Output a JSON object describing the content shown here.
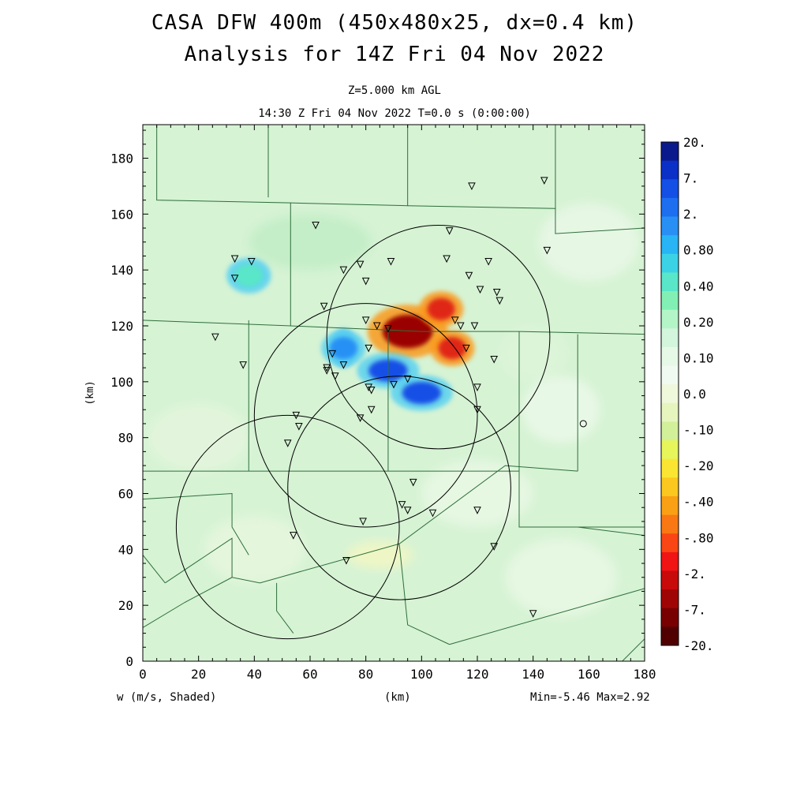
{
  "header": {
    "title_line1": "CASA DFW 400m (450x480x25, dx=0.4 km)",
    "title_line2": "Analysis for 14Z Fri 04 Nov 2022",
    "level": "Z=5.000 km AGL",
    "time": "14:30 Z Fri 04 Nov 2022    T=0.0 s (0:00:00)"
  },
  "footer": {
    "variable": "w (m/s, Shaded)",
    "xunit": "(km)",
    "minmax": "Min=-5.46 Max=2.92"
  },
  "chart_data": {
    "type": "heatmap",
    "title": "CASA DFW 400m (450x480x25, dx=0.4 km)",
    "xlabel": "(km)",
    "ylabel": "(km)",
    "xlim": [
      0,
      180
    ],
    "ylim": [
      0,
      192
    ],
    "x_ticks": [
      0,
      20,
      40,
      60,
      80,
      100,
      120,
      140,
      160,
      180
    ],
    "y_ticks": [
      0,
      20,
      40,
      60,
      80,
      100,
      120,
      140,
      160,
      180
    ],
    "colorbar": {
      "labels": [
        "20.",
        "7.",
        "2.",
        "0.80",
        "0.40",
        "0.20",
        "0.10",
        "0.0",
        "-.10",
        "-.20",
        "-.40",
        "-.80",
        "-2.",
        "-7.",
        "-20."
      ],
      "colors": [
        "#0a1a8c",
        "#0a30c8",
        "#1450e6",
        "#1e6ef0",
        "#2890f5",
        "#28b4f5",
        "#3cd2e6",
        "#5ae6c8",
        "#82f0b4",
        "#b4f5c8",
        "#d2f5dc",
        "#e6f8e6",
        "#f0faf0",
        "#f0f8dc",
        "#e6f5be",
        "#d2f09a",
        "#e6f55a",
        "#fae632",
        "#fac81e",
        "#faa014",
        "#fa7814",
        "#fa4614",
        "#f01414",
        "#c80a0a",
        "#a00505",
        "#780000",
        "#500000"
      ]
    },
    "min": -5.46,
    "max": 2.92,
    "features": [
      {
        "kind": "downdraft_core",
        "x": 95,
        "y": 118,
        "value": -5.46
      },
      {
        "kind": "downdraft_lobe",
        "x": 107,
        "y": 126,
        "value": -1.5
      },
      {
        "kind": "downdraft_lobe",
        "x": 111,
        "y": 112,
        "value": -1.2
      },
      {
        "kind": "updraft_band",
        "x": 88,
        "y": 104,
        "value": 2.0
      },
      {
        "kind": "updraft_band",
        "x": 100,
        "y": 96,
        "value": 1.5
      },
      {
        "kind": "updraft",
        "x": 72,
        "y": 112,
        "value": 0.6
      },
      {
        "kind": "updraft",
        "x": 38,
        "y": 138,
        "value": 0.3
      }
    ],
    "radar_circles": [
      {
        "cx": 106,
        "cy": 116,
        "r": 40
      },
      {
        "cx": 80,
        "cy": 88,
        "r": 40
      },
      {
        "cx": 92,
        "cy": 62,
        "r": 40
      },
      {
        "cx": 52,
        "cy": 48,
        "r": 40
      }
    ],
    "station_marker": {
      "x": 158,
      "y": 85
    },
    "stations": [
      [
        118,
        170
      ],
      [
        144,
        172
      ],
      [
        62,
        156
      ],
      [
        110,
        154
      ],
      [
        33,
        144
      ],
      [
        33,
        137
      ],
      [
        39,
        143
      ],
      [
        78,
        142
      ],
      [
        89,
        143
      ],
      [
        109,
        144
      ],
      [
        124,
        143
      ],
      [
        145,
        147
      ],
      [
        72,
        140
      ],
      [
        80,
        136
      ],
      [
        117,
        138
      ],
      [
        121,
        133
      ],
      [
        127,
        132
      ],
      [
        128,
        129
      ],
      [
        65,
        127
      ],
      [
        80,
        122
      ],
      [
        84,
        120
      ],
      [
        88,
        119
      ],
      [
        112,
        122
      ],
      [
        114,
        120
      ],
      [
        119,
        120
      ],
      [
        26,
        116
      ],
      [
        81,
        112
      ],
      [
        116,
        112
      ],
      [
        126,
        108
      ],
      [
        36,
        106
      ],
      [
        68,
        110
      ],
      [
        66,
        105
      ],
      [
        72,
        106
      ],
      [
        66,
        104
      ],
      [
        69,
        102
      ],
      [
        95,
        101
      ],
      [
        81,
        98
      ],
      [
        82,
        97
      ],
      [
        90,
        99
      ],
      [
        120,
        98
      ],
      [
        82,
        90
      ],
      [
        78,
        87
      ],
      [
        120,
        90
      ],
      [
        55,
        88
      ],
      [
        56,
        84
      ],
      [
        52,
        78
      ],
      [
        97,
        64
      ],
      [
        93,
        56
      ],
      [
        95,
        54
      ],
      [
        104,
        53
      ],
      [
        120,
        54
      ],
      [
        79,
        50
      ],
      [
        54,
        45
      ],
      [
        126,
        41
      ],
      [
        73,
        36
      ],
      [
        140,
        17
      ]
    ]
  }
}
